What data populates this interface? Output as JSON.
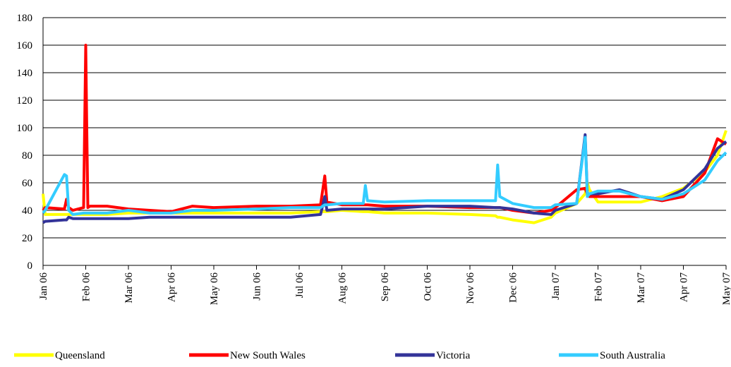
{
  "chart_data": {
    "type": "line",
    "x": [
      0,
      0.05,
      0.5,
      0.55,
      0.6,
      0.7,
      0.95,
      1.0,
      1.02,
      1.05,
      1.1,
      1.5,
      2,
      2.5,
      3,
      3.5,
      4,
      5,
      5.8,
      6.5,
      6.6,
      6.65,
      7,
      7.5,
      7.55,
      7.6,
      8,
      9,
      10,
      10.6,
      10.65,
      10.7,
      11,
      11.5,
      11.9,
      12,
      12.5,
      12.7,
      12.75,
      12.8,
      13,
      13.5,
      14,
      14.5,
      15,
      15.5,
      15.8,
      16
    ],
    "series": [
      {
        "name": "Queensland",
        "color": "#ffff00",
        "values": [
          52,
          37,
          37,
          37,
          37,
          37,
          37,
          37,
          37,
          37,
          37,
          37,
          38,
          38,
          38,
          38,
          38,
          38,
          38,
          39,
          39,
          39,
          40,
          39,
          39,
          39,
          38,
          38,
          37,
          36,
          35,
          35,
          33,
          31,
          35,
          38,
          45,
          52,
          60,
          55,
          46,
          46,
          46,
          50,
          56,
          68,
          80,
          98
        ]
      },
      {
        "name": "New South Wales",
        "color": "#ff0000",
        "values": [
          40,
          42,
          41,
          48,
          42,
          40,
          42,
          160,
          110,
          42,
          43,
          43,
          41,
          40,
          39,
          43,
          42,
          43,
          43,
          44,
          65,
          46,
          44,
          44,
          44,
          44,
          43,
          43,
          42,
          42,
          42,
          42,
          40,
          38,
          40,
          42,
          55,
          56,
          52,
          50,
          50,
          50,
          50,
          47,
          50,
          67,
          92,
          88
        ]
      },
      {
        "name": "Victoria",
        "color": "#333399",
        "values": [
          31,
          32,
          33,
          33,
          35,
          34,
          34,
          34,
          34,
          34,
          34,
          34,
          34,
          35,
          35,
          35,
          35,
          35,
          35,
          37,
          50,
          40,
          41,
          41,
          41,
          41,
          41,
          43,
          43,
          42,
          42,
          42,
          41,
          38,
          37,
          40,
          45,
          95,
          52,
          52,
          52,
          55,
          50,
          48,
          55,
          70,
          85,
          90
        ]
      },
      {
        "name": "South Australia",
        "color": "#33ccff",
        "values": [
          38,
          40,
          66,
          65,
          40,
          37,
          38,
          38,
          38,
          38,
          38,
          38,
          40,
          38,
          38,
          40,
          40,
          41,
          42,
          42,
          44,
          44,
          45,
          45,
          58,
          47,
          46,
          47,
          47,
          47,
          73,
          50,
          45,
          42,
          42,
          44,
          45,
          93,
          50,
          52,
          54,
          54,
          50,
          48,
          52,
          62,
          76,
          82
        ]
      }
    ],
    "xlim": [
      0,
      16
    ],
    "xticks": [
      {
        "value": 0,
        "label": "Jan 06"
      },
      {
        "value": 1,
        "label": "Feb 06"
      },
      {
        "value": 2,
        "label": "Mar 06"
      },
      {
        "value": 3,
        "label": "Apr 06"
      },
      {
        "value": 4,
        "label": "May 06"
      },
      {
        "value": 5,
        "label": "Jun 06"
      },
      {
        "value": 6,
        "label": "Jul 06"
      },
      {
        "value": 7,
        "label": "Aug 06"
      },
      {
        "value": 8,
        "label": "Sep 06"
      },
      {
        "value": 9,
        "label": "Oct 06"
      },
      {
        "value": 10,
        "label": "Nov 06"
      },
      {
        "value": 11,
        "label": "Dec 06"
      },
      {
        "value": 12,
        "label": "Jan 07"
      },
      {
        "value": 13,
        "label": "Feb 07"
      },
      {
        "value": 14,
        "label": "Mar 07"
      },
      {
        "value": 15,
        "label": "Apr 07"
      },
      {
        "value": 16,
        "label": "May 07"
      }
    ],
    "ylim": [
      0,
      180
    ],
    "yticks": [
      0,
      20,
      40,
      60,
      80,
      100,
      120,
      140,
      160,
      180
    ],
    "grid": true
  }
}
